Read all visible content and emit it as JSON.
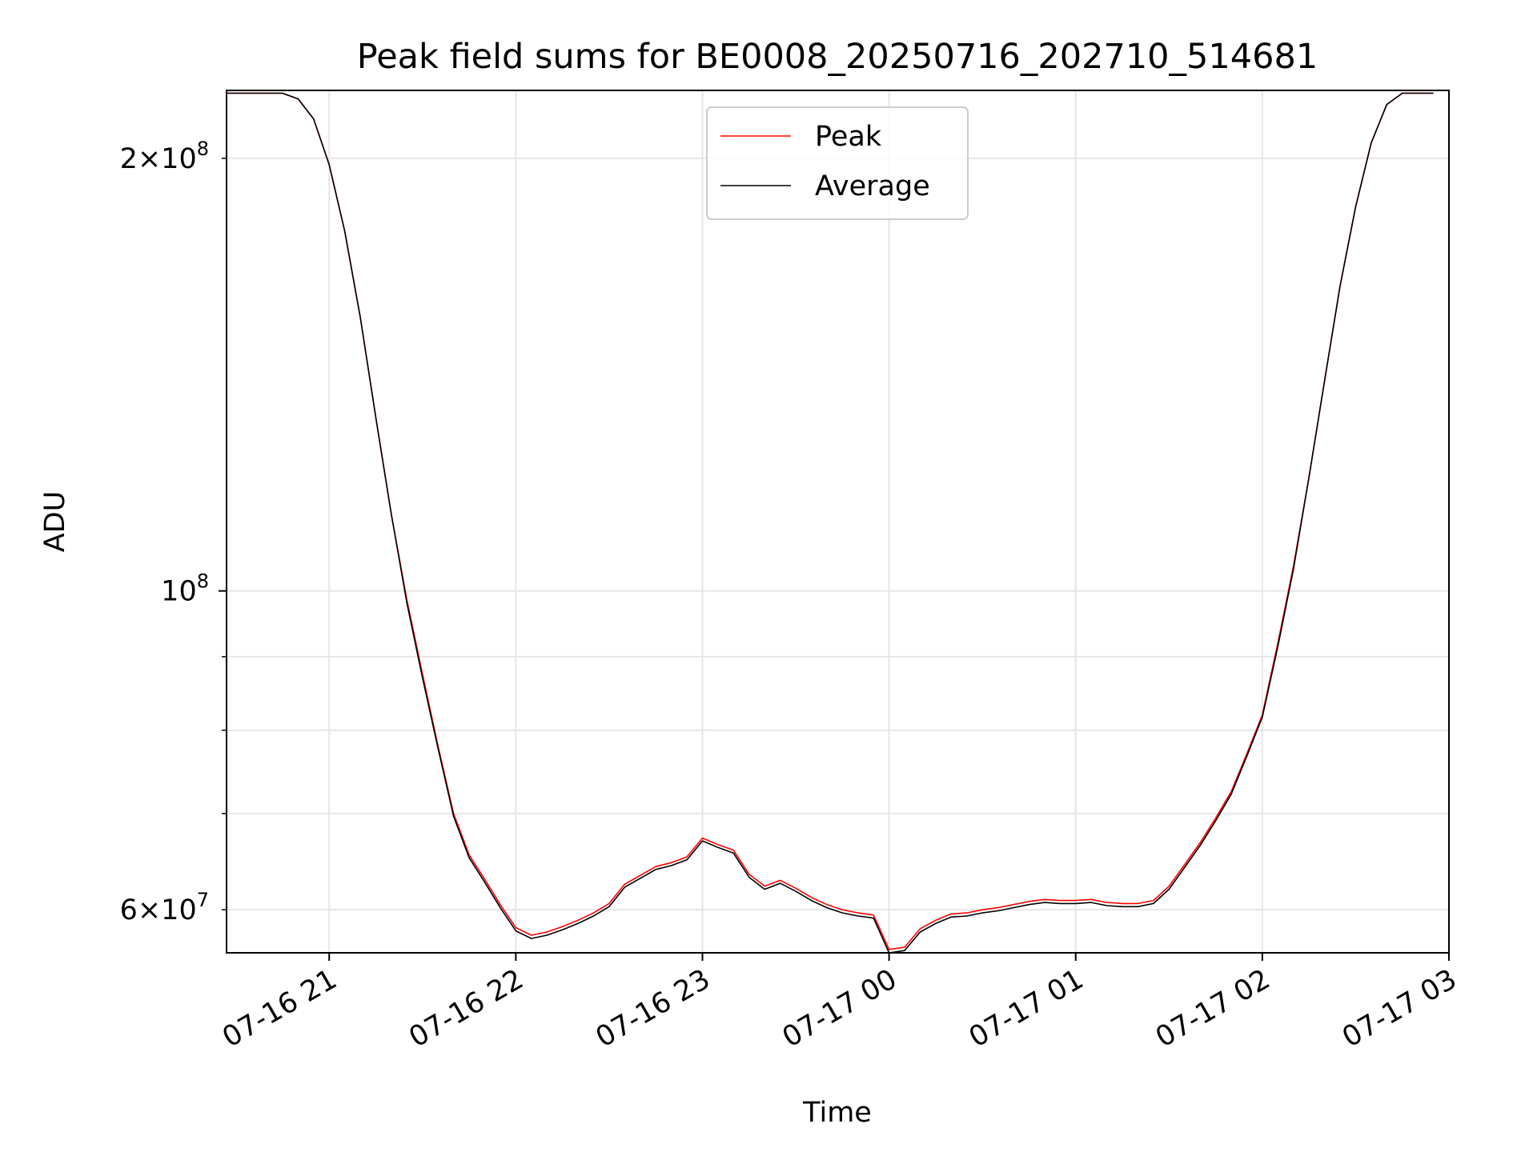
{
  "chart_data": {
    "type": "line",
    "title": "Peak field sums for BE0008_20250716_202710_514681",
    "xlabel": "Time",
    "ylabel": "ADU",
    "yscale": "log",
    "grid": true,
    "legend_position": "upper center",
    "xlim": [
      "2025-07-16 20:27",
      "2025-07-17 03:00"
    ],
    "ylim": [
      56000000,
      223000000
    ],
    "x_ticks": [
      "07-16 21",
      "07-16 22",
      "07-16 23",
      "07-17 00",
      "07-17 01",
      "07-17 02",
      "07-17 03"
    ],
    "y_ticks_major": [
      {
        "value": 100000000,
        "base": "10",
        "exp": "8"
      }
    ],
    "y_ticks_minor": [
      {
        "value": 60000000,
        "mant": "6",
        "base": "10",
        "exp": "7"
      },
      {
        "value": 70000000
      },
      {
        "value": 80000000
      },
      {
        "value": 90000000
      },
      {
        "value": 200000000,
        "mant": "2",
        "base": "10",
        "exp": "8"
      }
    ],
    "colors": {
      "peak": "#ff0000",
      "average": "#000000",
      "grid": "#e6e6e6"
    },
    "x": [
      "20:27",
      "20:45",
      "20:50",
      "20:55",
      "21:00",
      "21:05",
      "21:10",
      "21:15",
      "21:20",
      "21:25",
      "21:30",
      "21:35",
      "21:40",
      "21:45",
      "21:50",
      "21:55",
      "22:00",
      "22:05",
      "22:10",
      "22:15",
      "22:20",
      "22:25",
      "22:30",
      "22:35",
      "22:40",
      "22:45",
      "22:50",
      "22:55",
      "23:00",
      "23:05",
      "23:10",
      "23:15",
      "23:20",
      "23:25",
      "23:30",
      "23:35",
      "23:40",
      "23:45",
      "23:50",
      "23:55",
      "00:00",
      "00:05",
      "00:10",
      "00:15",
      "00:20",
      "00:25",
      "00:30",
      "00:35",
      "00:40",
      "00:45",
      "00:50",
      "00:55",
      "01:00",
      "01:05",
      "01:10",
      "01:15",
      "01:20",
      "01:25",
      "01:30",
      "01:35",
      "01:40",
      "01:45",
      "01:50",
      "01:55",
      "02:00",
      "02:05",
      "02:10",
      "02:15",
      "02:20",
      "02:25",
      "02:30",
      "02:35",
      "02:40",
      "02:45",
      "02:50",
      "02:55"
    ],
    "series": [
      {
        "name": "Peak",
        "values": [
          222000000,
          222000000,
          220000000,
          213000000,
          198000000,
          178000000,
          155000000,
          132000000,
          113000000,
          98500000,
          87500000,
          78000000,
          70000000,
          65500000,
          63000000,
          60500000,
          58300000,
          57600000,
          57900000,
          58400000,
          59000000,
          59700000,
          60600000,
          62500000,
          63400000,
          64300000,
          64700000,
          65300000,
          67300000,
          66600000,
          66000000,
          63500000,
          62300000,
          62900000,
          62100000,
          61200000,
          60500000,
          60000000,
          59700000,
          59500000,
          56300000,
          56500000,
          58200000,
          59000000,
          59600000,
          59700000,
          60000000,
          60200000,
          60500000,
          60800000,
          61000000,
          60900000,
          60900000,
          61000000,
          60700000,
          60600000,
          60600000,
          60900000,
          62300000,
          64500000,
          66800000,
          69500000,
          72500000,
          77000000,
          82000000,
          92000000,
          104000000,
          120000000,
          140000000,
          163000000,
          185000000,
          205000000,
          218000000,
          222000000,
          222000000,
          222000000
        ]
      },
      {
        "name": "Average",
        "values": [
          222000000,
          222000000,
          220000000,
          213000000,
          198000000,
          178000000,
          155000000,
          132000000,
          113000000,
          98000000,
          87000000,
          77700000,
          69700000,
          65200000,
          62700000,
          60200000,
          58000000,
          57300000,
          57600000,
          58100000,
          58700000,
          59400000,
          60300000,
          62200000,
          63100000,
          64000000,
          64400000,
          65000000,
          67000000,
          66300000,
          65700000,
          63200000,
          62000000,
          62600000,
          61800000,
          60900000,
          60200000,
          59700000,
          59400000,
          59200000,
          56000000,
          56200000,
          57900000,
          58700000,
          59300000,
          59400000,
          59700000,
          59900000,
          60200000,
          60500000,
          60700000,
          60600000,
          60600000,
          60700000,
          60400000,
          60300000,
          60300000,
          60600000,
          62000000,
          64200000,
          66500000,
          69200000,
          72200000,
          76700000,
          81700000,
          91500000,
          103500000,
          120000000,
          140000000,
          163000000,
          185000000,
          205000000,
          218000000,
          222000000,
          222000000,
          222000000
        ]
      }
    ]
  }
}
